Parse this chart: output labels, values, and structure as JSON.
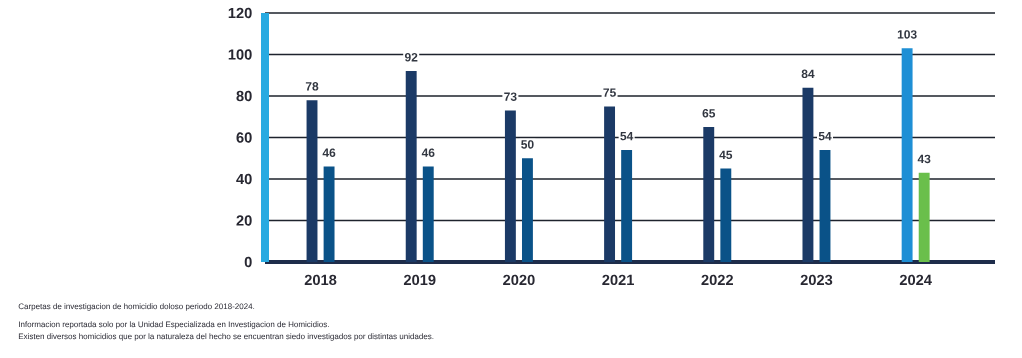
{
  "chart_data": {
    "type": "bar",
    "categories": [
      "2018",
      "2019",
      "2020",
      "2021",
      "2022",
      "2023",
      "2024"
    ],
    "series": [
      {
        "colors": [
          "#1b3a66",
          "#1b3a66",
          "#1b3a66",
          "#1b3a66",
          "#1b3a66",
          "#1b3a66",
          "#1e8fd5"
        ],
        "values": [
          78,
          92,
          73,
          75,
          65,
          84,
          103
        ]
      },
      {
        "colors": [
          "#0a5288",
          "#0a5288",
          "#0a5288",
          "#0a5288",
          "#0a5288",
          "#0a5288",
          "#6abf4b"
        ],
        "values": [
          46,
          46,
          50,
          54,
          45,
          54,
          43
        ]
      }
    ],
    "ylim": [
      0,
      120
    ],
    "yticks": [
      0,
      20,
      40,
      60,
      80,
      100,
      120
    ],
    "grid": "y",
    "data_labels": true,
    "annotations": [
      "Carpetas de investigacion de homicidio doloso periodo 2018-2024.",
      "Informacion reportada solo por la Unidad Especializada en Investigacion de Homicidios.",
      "Existen diversos homicidios que por la naturaleza del hecho se encuentran siedo investigados por distintas unidades."
    ]
  }
}
